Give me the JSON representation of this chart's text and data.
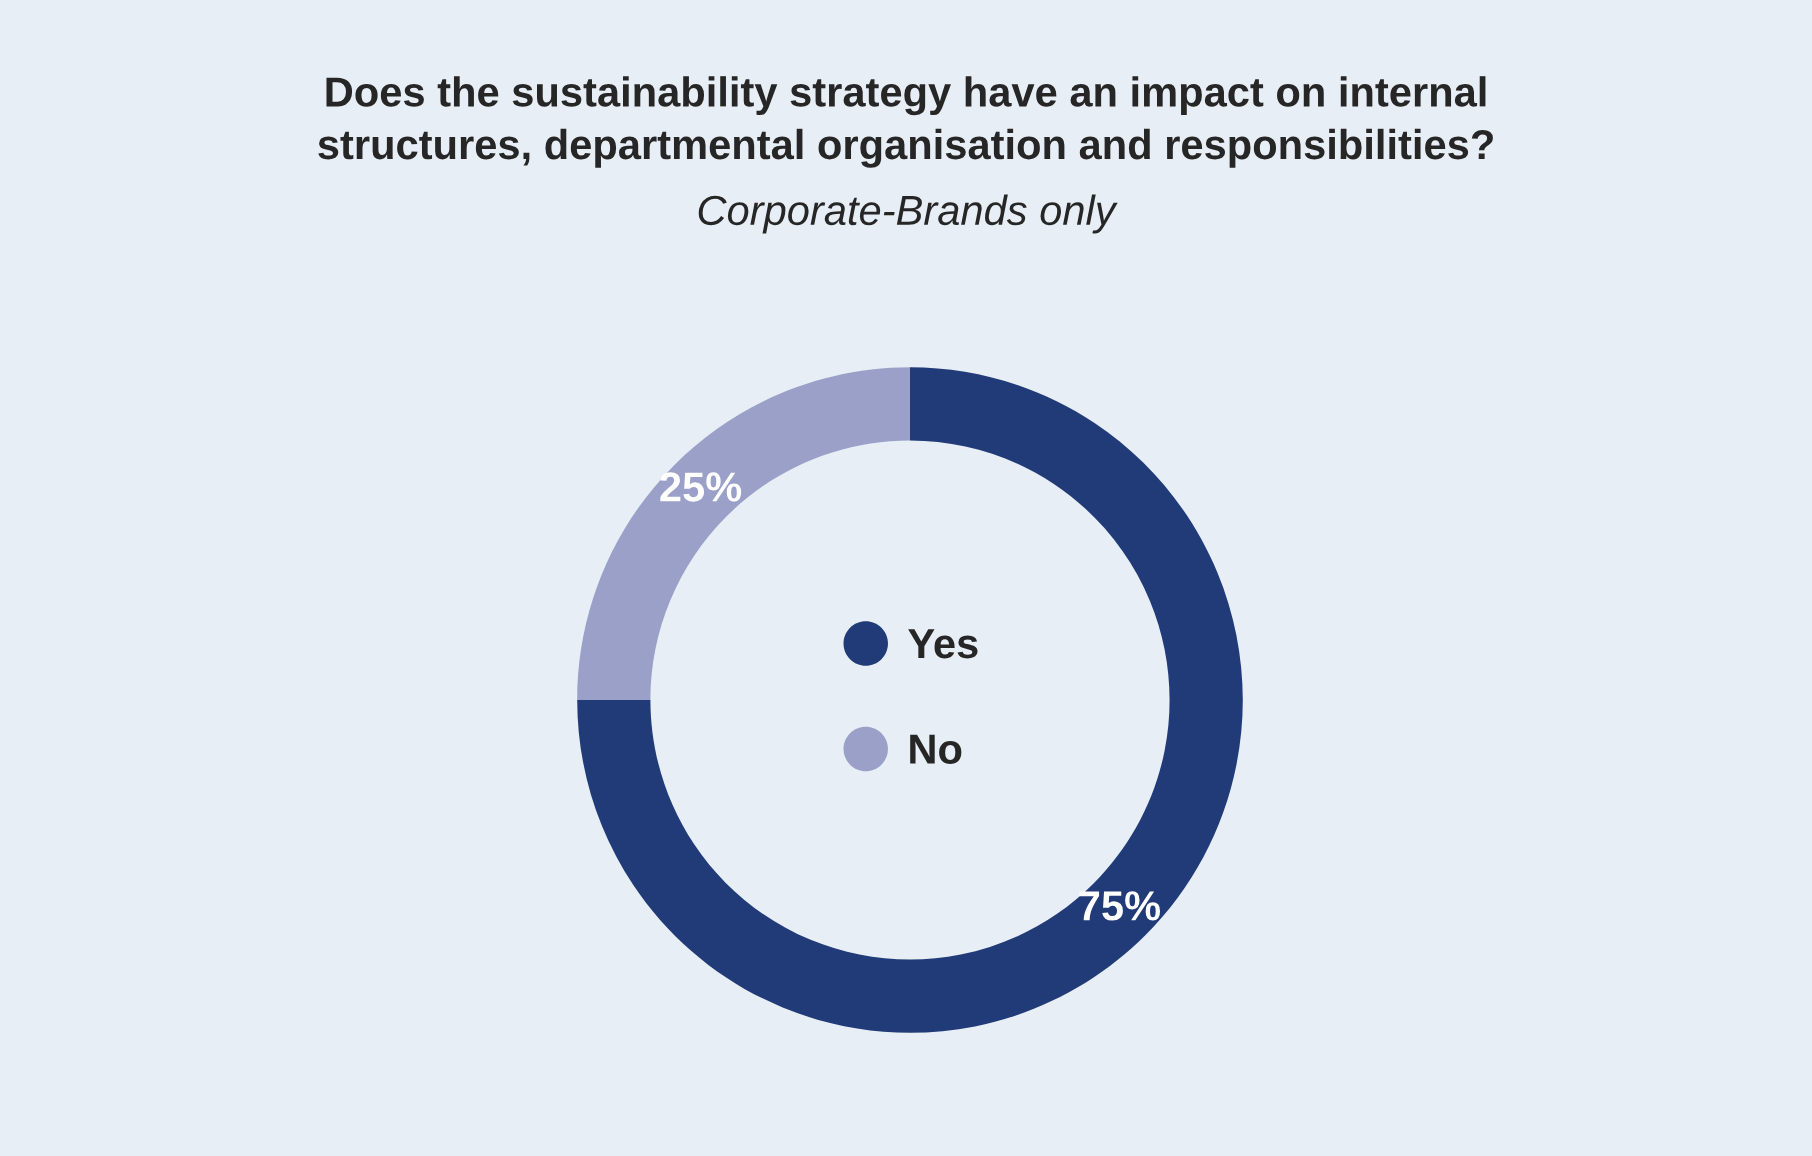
{
  "chart_data": {
    "type": "donut",
    "title": "Does the sustainability strategy have an impact on internal\nstructures, departmental organisation and responsibilities?",
    "subtitle": "Corporate-Brands only",
    "categories": [
      "Yes",
      "No"
    ],
    "values": [
      75,
      25
    ],
    "colors": [
      "#213a78",
      "#9aa0c8"
    ],
    "value_labels": [
      "75%",
      "25%"
    ],
    "legend": "center"
  }
}
